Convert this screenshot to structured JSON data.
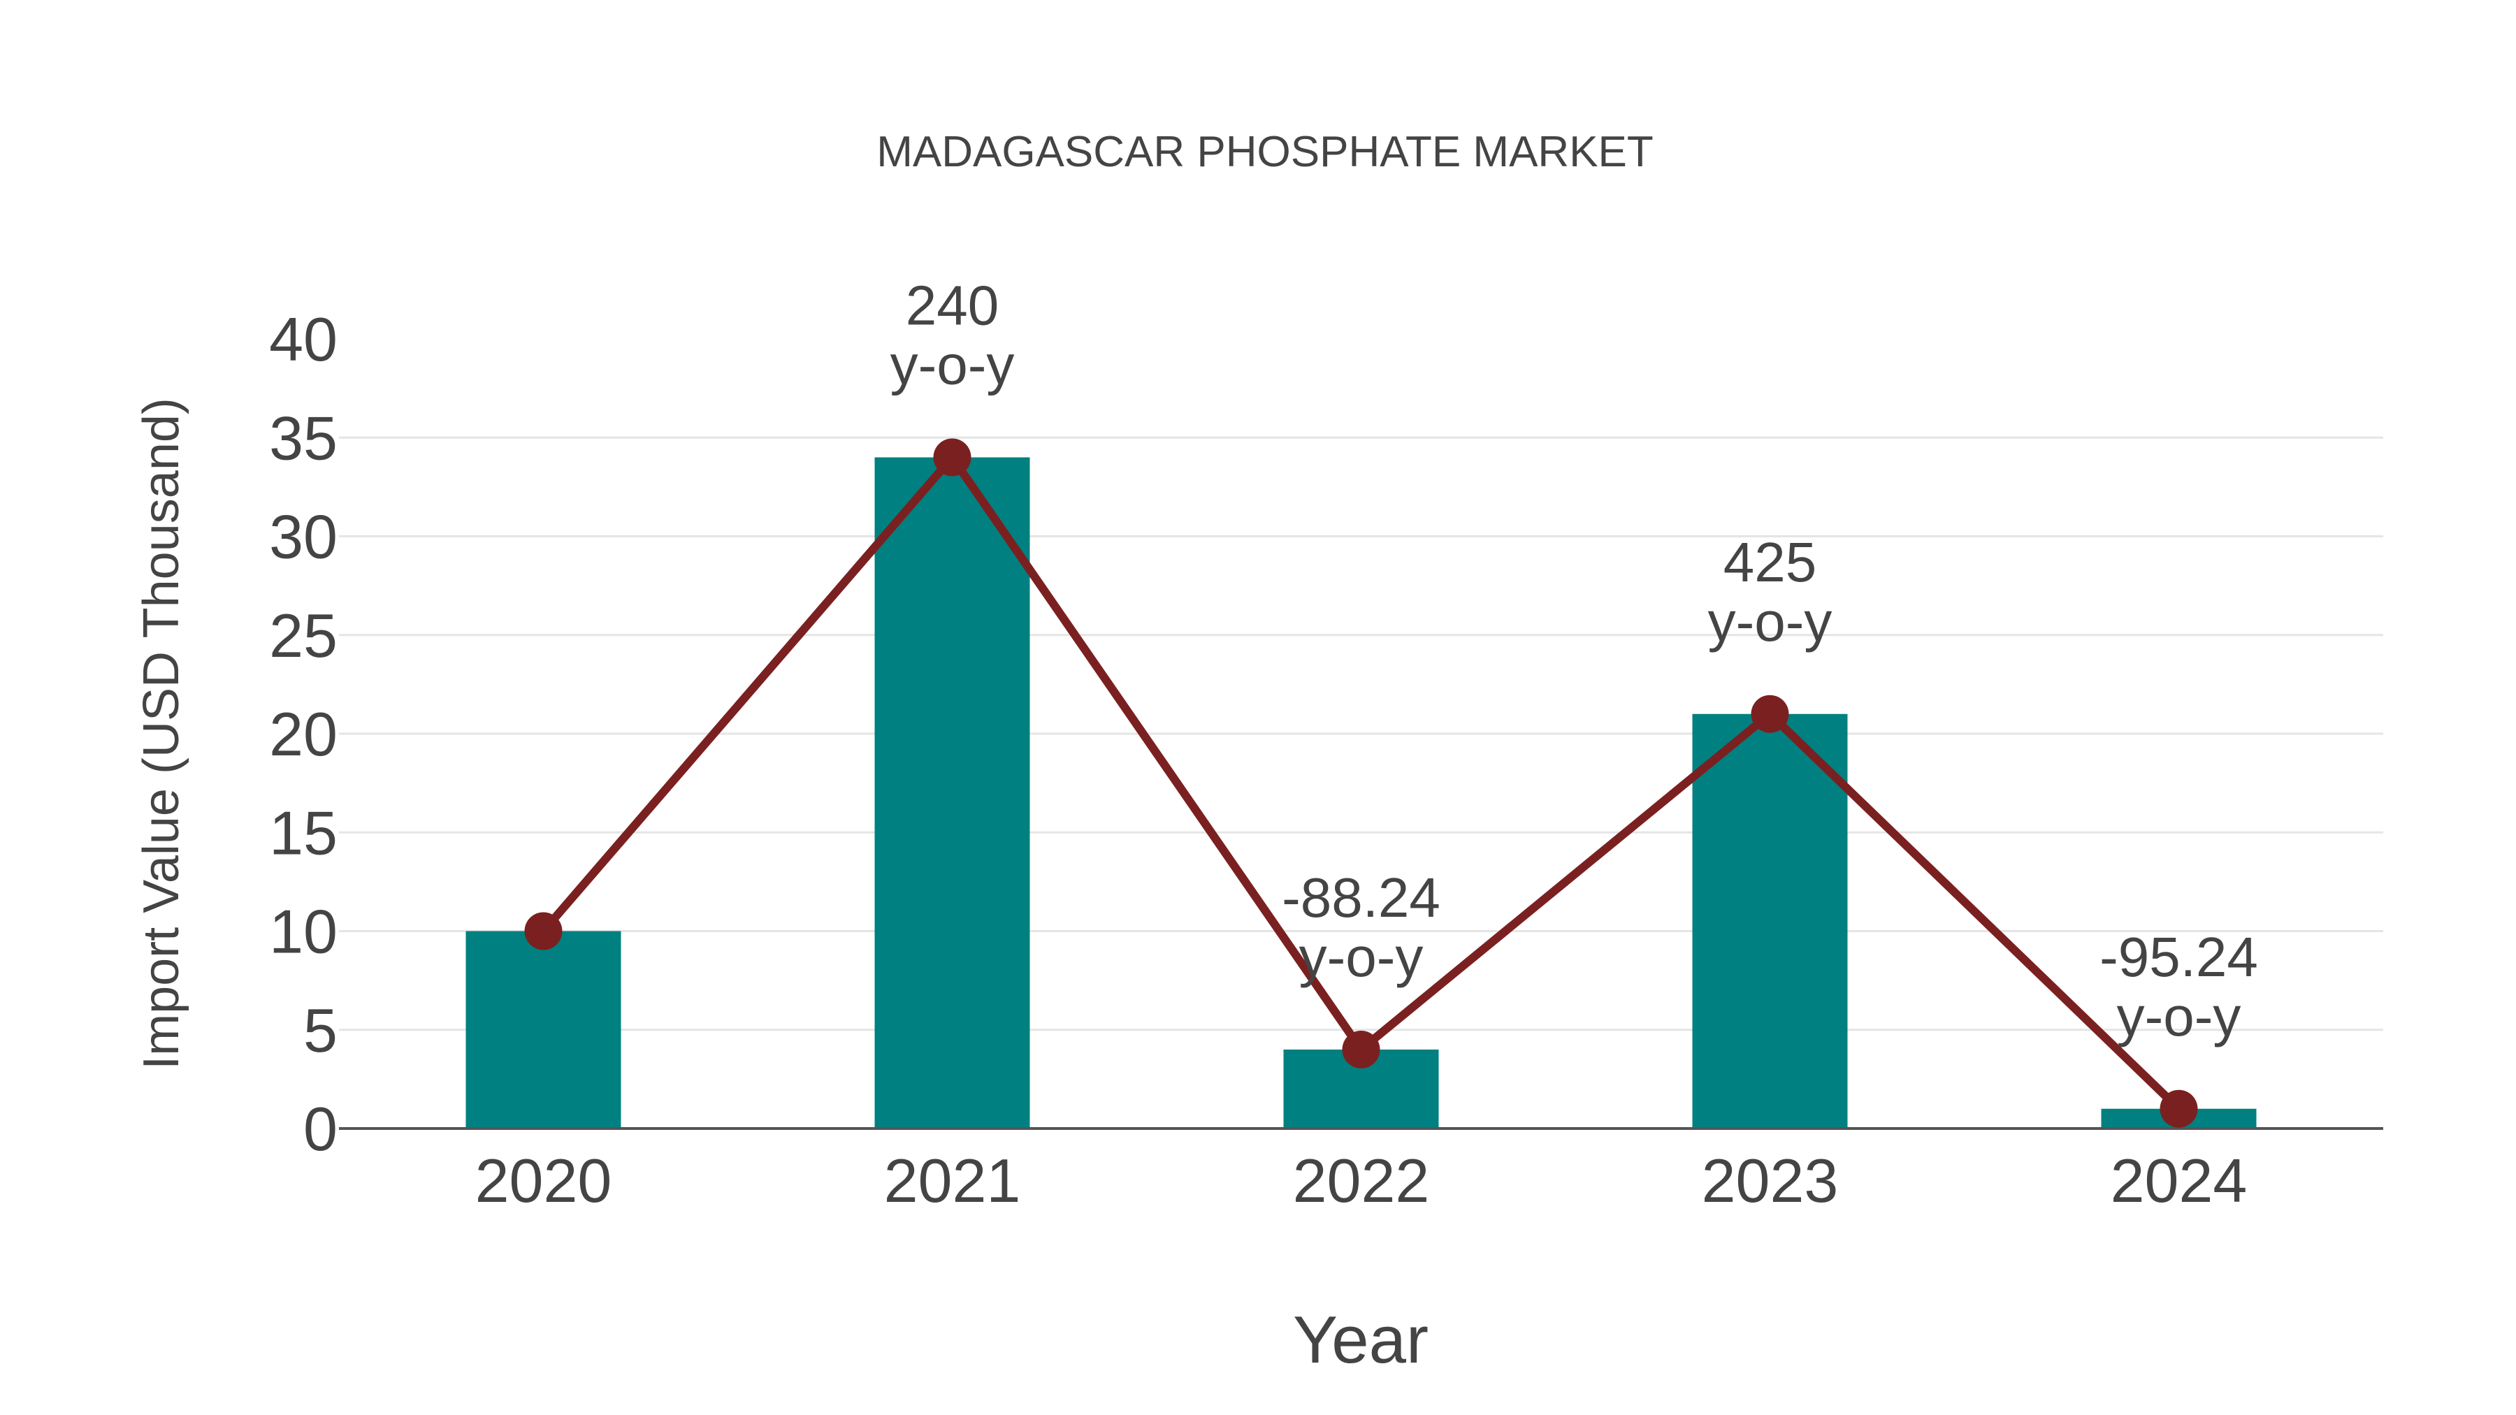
{
  "chart_data": {
    "type": "bar",
    "title": "MADAGASCAR PHOSPHATE MARKET",
    "xlabel": "Year",
    "ylabel": "Import Value (USD Thousand)",
    "categories": [
      "2020",
      "2021",
      "2022",
      "2023",
      "2024"
    ],
    "series": [
      {
        "name": "Import Value (bar)",
        "type": "bar",
        "color": "#008080",
        "values": [
          10,
          34,
          4,
          21,
          1
        ]
      },
      {
        "name": "Import Value (line)",
        "type": "line",
        "color": "#7B2020",
        "values": [
          10,
          34,
          4,
          21,
          1
        ]
      }
    ],
    "annotations": [
      {
        "category": "2021",
        "value": "240",
        "suffix": "y-o-y"
      },
      {
        "category": "2022",
        "value": "-88.24",
        "suffix": "y-o-y"
      },
      {
        "category": "2023",
        "value": "425",
        "suffix": "y-o-y"
      },
      {
        "category": "2024",
        "value": "-95.24",
        "suffix": "y-o-y"
      }
    ],
    "yticks": [
      0,
      5,
      10,
      15,
      20,
      25,
      30,
      35,
      40
    ],
    "ylim": [
      0,
      40
    ],
    "grid": true,
    "legend": "none"
  },
  "colors": {
    "bar": "#008080",
    "line": "#7B2020",
    "grid": "#e5e5e5",
    "axis": "#555555",
    "text": "#444444"
  }
}
